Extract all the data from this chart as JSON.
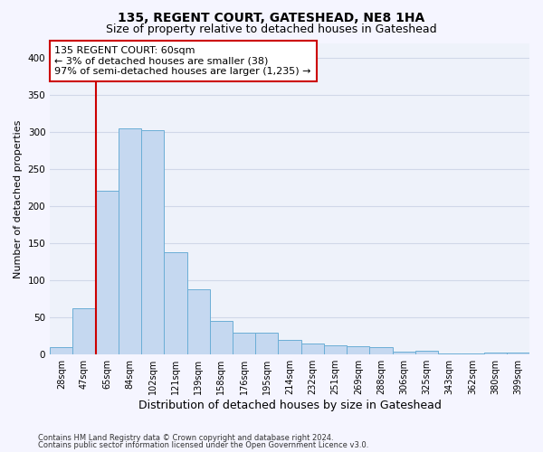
{
  "title": "135, REGENT COURT, GATESHEAD, NE8 1HA",
  "subtitle": "Size of property relative to detached houses in Gateshead",
  "xlabel": "Distribution of detached houses by size in Gateshead",
  "ylabel": "Number of detached properties",
  "categories": [
    "28sqm",
    "47sqm",
    "65sqm",
    "84sqm",
    "102sqm",
    "121sqm",
    "139sqm",
    "158sqm",
    "176sqm",
    "195sqm",
    "214sqm",
    "232sqm",
    "251sqm",
    "269sqm",
    "288sqm",
    "306sqm",
    "325sqm",
    "343sqm",
    "362sqm",
    "380sqm",
    "399sqm"
  ],
  "values": [
    10,
    63,
    221,
    305,
    302,
    138,
    88,
    45,
    30,
    30,
    20,
    15,
    13,
    11,
    10,
    4,
    5,
    2,
    2,
    3,
    3
  ],
  "bar_color": "#c5d8f0",
  "bar_edge_color": "#6baed6",
  "vline_color": "#cc0000",
  "vline_pos": 1.5,
  "annotation_text": "135 REGENT COURT: 60sqm\n← 3% of detached houses are smaller (38)\n97% of semi-detached houses are larger (1,235) →",
  "annotation_box_color": "#ffffff",
  "annotation_box_edge": "#cc0000",
  "ylim": [
    0,
    420
  ],
  "yticks": [
    0,
    50,
    100,
    150,
    200,
    250,
    300,
    350,
    400
  ],
  "footer1": "Contains HM Land Registry data © Crown copyright and database right 2024.",
  "footer2": "Contains public sector information licensed under the Open Government Licence v3.0.",
  "bg_color": "#eef2fa",
  "grid_color": "#d0d8e8",
  "fig_bg": "#f5f5ff",
  "title_fontsize": 10,
  "subtitle_fontsize": 9,
  "tick_fontsize": 7,
  "ylabel_fontsize": 8,
  "xlabel_fontsize": 9,
  "footer_fontsize": 6,
  "ann_fontsize": 8
}
